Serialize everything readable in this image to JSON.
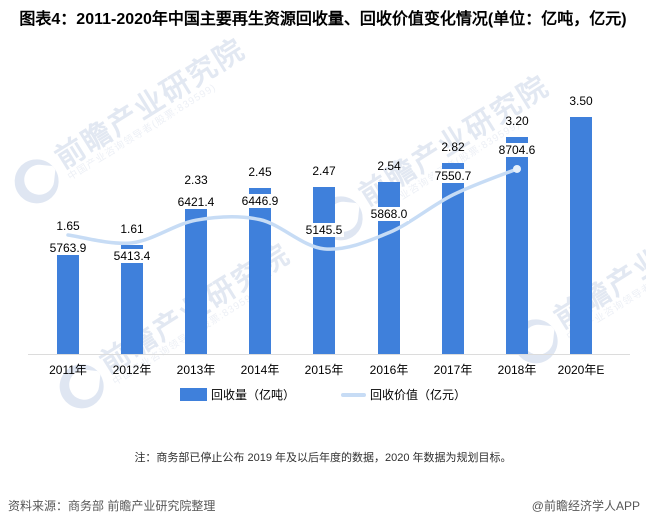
{
  "title": "图表4：2011-2020年中国主要再生资源回收量、回收价值变化情况(单位：亿吨，亿元)",
  "note": "注：商务部已停止公布 2019 年及以后年度的数据，2020 年数据为规划目标。",
  "source": "资料来源：商务部 前瞻产业研究院整理",
  "credit": "@前瞻经济学人APP",
  "watermark": {
    "big": "前瞻产业研究院",
    "small": "中国产业咨询领导者(股票:839599)"
  },
  "legend": [
    {
      "label": "回收量（亿吨）",
      "type": "bar"
    },
    {
      "label": "回收价值（亿元）",
      "type": "line"
    }
  ],
  "colors": {
    "bar": "#3F80DB",
    "line": "#C7DCF5",
    "line_end_marker": "#E7F0FA",
    "axis": "#DCDCDC",
    "label_text": "#000000",
    "watermark": "#E2E8F2"
  },
  "chart_data": {
    "type": "bar+line",
    "title": "图表4：2011-2020年中国主要再生资源回收量、回收价值变化情况(单位：亿吨，亿元)",
    "categories": [
      "2011年",
      "2012年",
      "2013年",
      "2014年",
      "2015年",
      "2016年",
      "2017年",
      "2018年",
      "2020年E"
    ],
    "series": [
      {
        "name": "回收量（亿吨）",
        "type": "bar",
        "values": [
          1.65,
          1.61,
          2.33,
          2.45,
          2.47,
          2.54,
          2.82,
          3.2,
          3.5
        ],
        "labels": [
          "1.65",
          "1.61",
          "2.33",
          "2.45",
          "2.47",
          "2.54",
          "2.82",
          "3.20",
          "3.50"
        ],
        "axis_range_hint": [
          0,
          3.9
        ]
      },
      {
        "name": "回收价值（亿元）",
        "type": "line",
        "smooth": true,
        "values": [
          5763.9,
          5413.4,
          6421.4,
          6446.9,
          5145.5,
          5868.0,
          7550.7,
          8704.6,
          null
        ],
        "labels": [
          "5763.9",
          "5413.4",
          "6421.4",
          "6446.9",
          "5145.5",
          "5868.0",
          "7550.7",
          "8704.6",
          null
        ],
        "label_side": [
          "below",
          "below",
          "above",
          "above",
          "above",
          "above",
          "above",
          "above",
          null
        ],
        "axis_range_hint": [
          4500,
          9500
        ]
      }
    ],
    "grid": false,
    "y_axis_visible": false,
    "legend_position": "bottom"
  }
}
